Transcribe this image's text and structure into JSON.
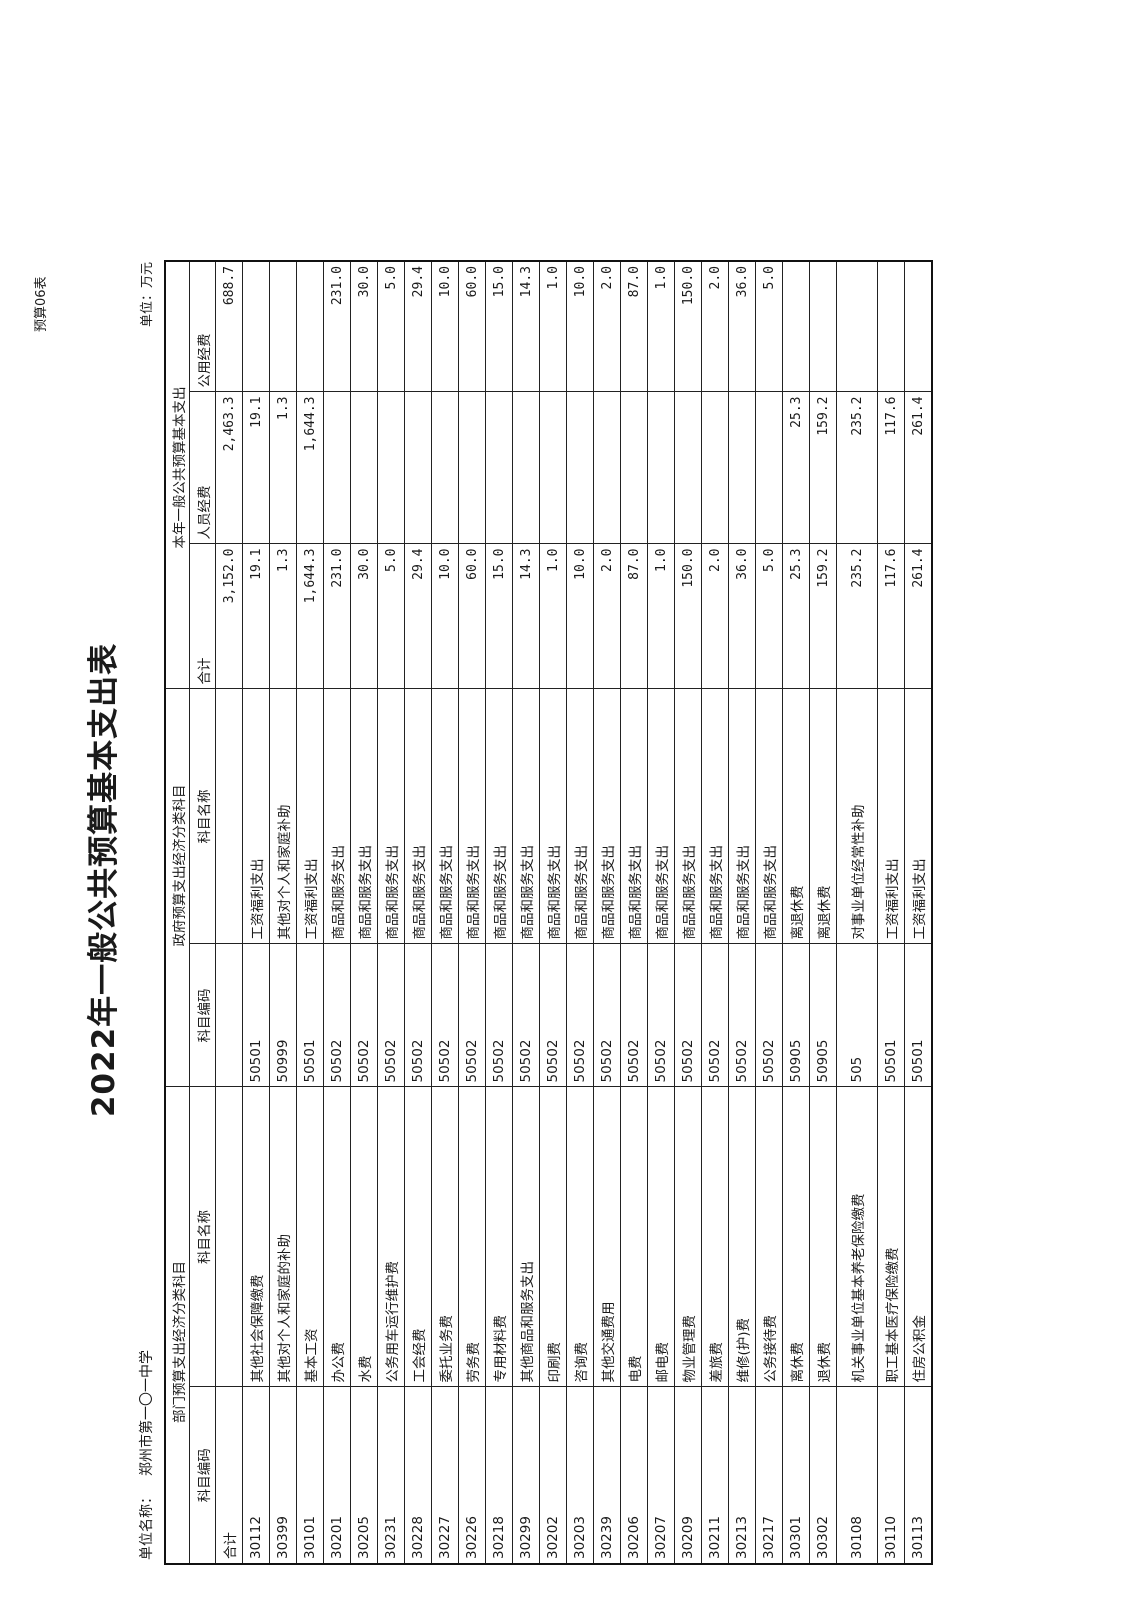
{
  "form_no": "预算06表",
  "title": "2022年一般公共预算基本支出表",
  "unit_name_label": "单位名称：",
  "unit_name": "郑州市第一〇一中学",
  "unit_label": "单位：万元",
  "headers": {
    "dept_group": "部门预算支出经济分类科目",
    "gov_group": "政府预算支出经济分类科目",
    "budget_group": "本年一般公共预算基本支出",
    "code": "科目编码",
    "name": "科目名称",
    "gov_code": "科目编码",
    "gov_name": "科目名称",
    "total": "合计",
    "personnel": "人员经费",
    "public": "公用经费"
  },
  "total_row": {
    "label": "合计",
    "total": "3,152.0",
    "personnel": "2,463.3",
    "public": "688.7"
  },
  "rows": [
    {
      "code": "30112",
      "name": "其他社会保障缴费",
      "gov_code": "50501",
      "gov_name": "工资福利支出",
      "total": "19.1",
      "personnel": "19.1",
      "public": ""
    },
    {
      "code": "30399",
      "name": "其他对个人和家庭的补助",
      "gov_code": "50999",
      "gov_name": "其他对个人和家庭补助",
      "total": "1.3",
      "personnel": "1.3",
      "public": ""
    },
    {
      "code": "30101",
      "name": "基本工资",
      "gov_code": "50501",
      "gov_name": "工资福利支出",
      "total": "1,644.3",
      "personnel": "1,644.3",
      "public": ""
    },
    {
      "code": "30201",
      "name": "办公费",
      "gov_code": "50502",
      "gov_name": "商品和服务支出",
      "total": "231.0",
      "personnel": "",
      "public": "231.0"
    },
    {
      "code": "30205",
      "name": "水费",
      "gov_code": "50502",
      "gov_name": "商品和服务支出",
      "total": "30.0",
      "personnel": "",
      "public": "30.0"
    },
    {
      "code": "30231",
      "name": "公务用车运行维护费",
      "gov_code": "50502",
      "gov_name": "商品和服务支出",
      "total": "5.0",
      "personnel": "",
      "public": "5.0"
    },
    {
      "code": "30228",
      "name": "工会经费",
      "gov_code": "50502",
      "gov_name": "商品和服务支出",
      "total": "29.4",
      "personnel": "",
      "public": "29.4"
    },
    {
      "code": "30227",
      "name": "委托业务费",
      "gov_code": "50502",
      "gov_name": "商品和服务支出",
      "total": "10.0",
      "personnel": "",
      "public": "10.0"
    },
    {
      "code": "30226",
      "name": "劳务费",
      "gov_code": "50502",
      "gov_name": "商品和服务支出",
      "total": "60.0",
      "personnel": "",
      "public": "60.0"
    },
    {
      "code": "30218",
      "name": "专用材料费",
      "gov_code": "50502",
      "gov_name": "商品和服务支出",
      "total": "15.0",
      "personnel": "",
      "public": "15.0"
    },
    {
      "code": "30299",
      "name": "其他商品和服务支出",
      "gov_code": "50502",
      "gov_name": "商品和服务支出",
      "total": "14.3",
      "personnel": "",
      "public": "14.3"
    },
    {
      "code": "30202",
      "name": "印刷费",
      "gov_code": "50502",
      "gov_name": "商品和服务支出",
      "total": "1.0",
      "personnel": "",
      "public": "1.0"
    },
    {
      "code": "30203",
      "name": "咨询费",
      "gov_code": "50502",
      "gov_name": "商品和服务支出",
      "total": "10.0",
      "personnel": "",
      "public": "10.0"
    },
    {
      "code": "30239",
      "name": "其他交通费用",
      "gov_code": "50502",
      "gov_name": "商品和服务支出",
      "total": "2.0",
      "personnel": "",
      "public": "2.0"
    },
    {
      "code": "30206",
      "name": "电费",
      "gov_code": "50502",
      "gov_name": "商品和服务支出",
      "total": "87.0",
      "personnel": "",
      "public": "87.0"
    },
    {
      "code": "30207",
      "name": "邮电费",
      "gov_code": "50502",
      "gov_name": "商品和服务支出",
      "total": "1.0",
      "personnel": "",
      "public": "1.0"
    },
    {
      "code": "30209",
      "name": "物业管理费",
      "gov_code": "50502",
      "gov_name": "商品和服务支出",
      "total": "150.0",
      "personnel": "",
      "public": "150.0"
    },
    {
      "code": "30211",
      "name": "差旅费",
      "gov_code": "50502",
      "gov_name": "商品和服务支出",
      "total": "2.0",
      "personnel": "",
      "public": "2.0"
    },
    {
      "code": "30213",
      "name": "维修(护)费",
      "gov_code": "50502",
      "gov_name": "商品和服务支出",
      "total": "36.0",
      "personnel": "",
      "public": "36.0"
    },
    {
      "code": "30217",
      "name": "公务接待费",
      "gov_code": "50502",
      "gov_name": "商品和服务支出",
      "total": "5.0",
      "personnel": "",
      "public": "5.0"
    },
    {
      "code": "30301",
      "name": "离休费",
      "gov_code": "50905",
      "gov_name": "离退休费",
      "total": "25.3",
      "personnel": "25.3",
      "public": ""
    },
    {
      "code": "30302",
      "name": "退休费",
      "gov_code": "50905",
      "gov_name": "离退休费",
      "total": "159.2",
      "personnel": "159.2",
      "public": ""
    },
    {
      "code": "30108",
      "name": "机关事业单位基本养老保险缴费",
      "gov_code": "505",
      "gov_name": "对事业单位经常性补助",
      "total": "235.2",
      "personnel": "235.2",
      "public": "",
      "tall": true
    },
    {
      "code": "30110",
      "name": "职工基本医疗保险缴费",
      "gov_code": "50501",
      "gov_name": "工资福利支出",
      "total": "117.6",
      "personnel": "117.6",
      "public": ""
    },
    {
      "code": "30113",
      "name": "住房公积金",
      "gov_code": "50501",
      "gov_name": "工资福利支出",
      "total": "261.4",
      "personnel": "261.4",
      "public": ""
    }
  ]
}
